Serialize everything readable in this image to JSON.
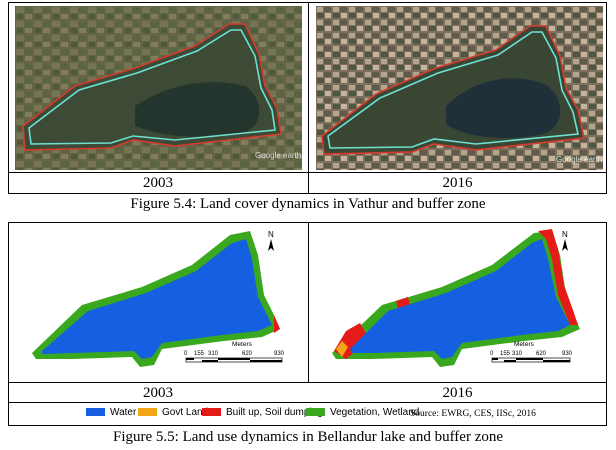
{
  "figure_5_4": {
    "years": [
      "2003",
      "2016"
    ],
    "watermark": "Google earth",
    "caption": "Figure 5.4: Land cover dynamics in Vathur and buffer zone"
  },
  "figure_5_5": {
    "years": [
      "2003",
      "2016"
    ],
    "north_label": "N",
    "scale": {
      "unit": "Meters",
      "ticks": [
        "0",
        "155",
        "310",
        "620",
        "930"
      ]
    },
    "legend": [
      {
        "label": "Water",
        "color": "#1560e0"
      },
      {
        "label": "Govt Land",
        "color": "#f2a516"
      },
      {
        "label": "Built up, Soil dumping",
        "color": "#e41b17"
      },
      {
        "label": "Vegetation, Wetland",
        "color": "#3aa81e"
      }
    ],
    "source": "Source: EWRG, CES, IISc, 2016",
    "caption": "Figure 5.5: Land use dynamics in Bellandur lake and buffer zone"
  }
}
